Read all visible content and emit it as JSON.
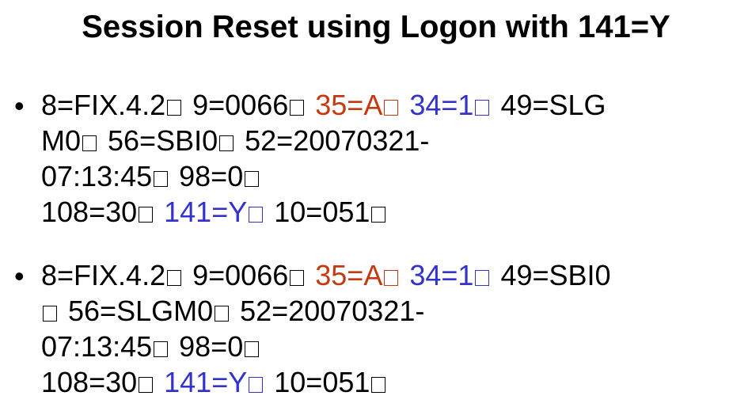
{
  "title": "Session Reset using Logon with 141=Y",
  "colors": {
    "red": "#c43a10",
    "blue": "#3333cc",
    "text": "#000000"
  },
  "bullet_glyph": "•",
  "messages": [
    {
      "lines": [
        [
          {
            "t": "8=FIX.4.2",
            "c": ""
          },
          {
            "soh": true,
            "c": ""
          },
          {
            "t": " 9=0066",
            "c": ""
          },
          {
            "soh": true,
            "c": ""
          },
          {
            "t": " 35=A",
            "c": "red"
          },
          {
            "soh": true,
            "c": "red"
          },
          {
            "t": " 34=1",
            "c": "blue"
          },
          {
            "soh": true,
            "c": "blue"
          },
          {
            "t": " 49=SLG",
            "c": ""
          }
        ],
        [
          {
            "t": "M0",
            "c": ""
          },
          {
            "soh": true,
            "c": ""
          },
          {
            "t": " 56=SBI0",
            "c": ""
          },
          {
            "soh": true,
            "c": ""
          },
          {
            "t": " 52=20070321-",
            "c": ""
          }
        ],
        [
          {
            "t": "07:13:45",
            "c": ""
          },
          {
            "soh": true,
            "c": ""
          },
          {
            "t": " 98=0",
            "c": ""
          },
          {
            "soh": true,
            "c": ""
          }
        ],
        [
          {
            "t": "108=30",
            "c": ""
          },
          {
            "soh": true,
            "c": ""
          },
          {
            "t": " 141=Y",
            "c": "blue"
          },
          {
            "soh": true,
            "c": "blue"
          },
          {
            "t": " 10=051",
            "c": ""
          },
          {
            "soh": true,
            "c": ""
          }
        ]
      ]
    },
    {
      "lines": [
        [
          {
            "t": "8=FIX.4.2",
            "c": ""
          },
          {
            "soh": true,
            "c": ""
          },
          {
            "t": " 9=0066",
            "c": ""
          },
          {
            "soh": true,
            "c": ""
          },
          {
            "t": " 35=A",
            "c": "red"
          },
          {
            "soh": true,
            "c": "red"
          },
          {
            "t": " 34=1",
            "c": "blue"
          },
          {
            "soh": true,
            "c": "blue"
          },
          {
            "t": " 49=SBI0",
            "c": ""
          }
        ],
        [
          {
            "soh": true,
            "c": ""
          },
          {
            "t": " 56=SLGM0",
            "c": ""
          },
          {
            "soh": true,
            "c": ""
          },
          {
            "t": " 52=20070321-",
            "c": ""
          }
        ],
        [
          {
            "t": "07:13:45",
            "c": ""
          },
          {
            "soh": true,
            "c": ""
          },
          {
            "t": " 98=0",
            "c": ""
          },
          {
            "soh": true,
            "c": ""
          }
        ],
        [
          {
            "t": "108=30",
            "c": ""
          },
          {
            "soh": true,
            "c": ""
          },
          {
            "t": " 141=Y",
            "c": "blue"
          },
          {
            "soh": true,
            "c": "blue"
          },
          {
            "t": " 10=051",
            "c": ""
          },
          {
            "soh": true,
            "c": ""
          }
        ]
      ]
    }
  ]
}
